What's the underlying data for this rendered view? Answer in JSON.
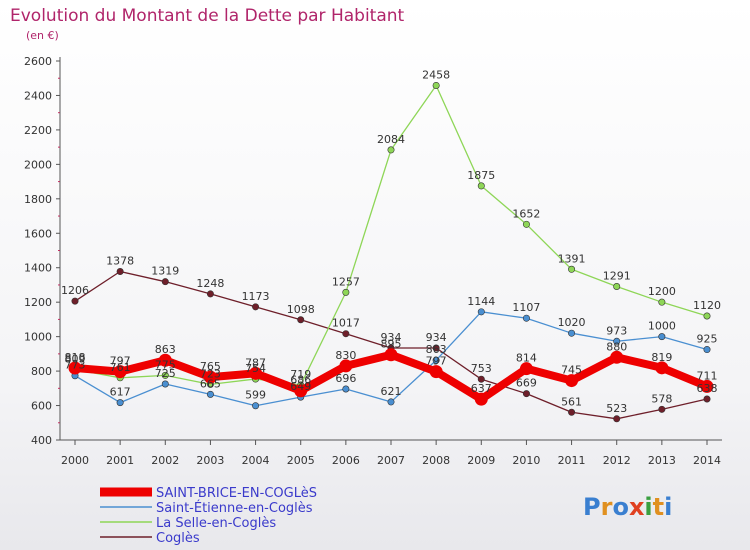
{
  "title": "Evolution du Montant de la Dette par Habitant",
  "subtitle": "(en €)",
  "logo_text": "Proxiti",
  "chart_data": {
    "type": "line",
    "title": "Evolution du Montant de la Dette par Habitant",
    "subtitle": "(en €)",
    "xlabel": "",
    "ylabel": "",
    "ylim": [
      400,
      2600
    ],
    "yticks": [
      400,
      600,
      800,
      1000,
      1200,
      1400,
      1600,
      1800,
      2000,
      2200,
      2400,
      2600
    ],
    "grid": false,
    "legend_position": "bottom-left",
    "categories": [
      "2000",
      "2001",
      "2002",
      "2003",
      "2004",
      "2005",
      "2006",
      "2007",
      "2008",
      "2009",
      "2010",
      "2011",
      "2012",
      "2013",
      "2014"
    ],
    "series": [
      {
        "name": "Coglès",
        "color": "#6e1f2a",
        "values": [
          1206,
          1378,
          1319,
          1248,
          1173,
          1098,
          1017,
          934,
          934,
          753,
          669,
          561,
          523,
          578,
          638
        ]
      },
      {
        "name": "Saint-Étienne-en-Coglès",
        "color": "#4a8fd1",
        "values": [
          773,
          617,
          725,
          665,
          599,
          649,
          696,
          621,
          863,
          1144,
          1107,
          1020,
          973,
          1000,
          925
        ]
      },
      {
        "name": "La Selle-en-Coglès",
        "color": "#8ed657",
        "values": [
          809,
          761,
          775,
          723,
          754,
          719,
          1257,
          2084,
          2458,
          1875,
          1652,
          1391,
          1291,
          1200,
          1120
        ]
      },
      {
        "name": "SAINT-BRICE-EN-COGLèS",
        "color": "#ee0000",
        "values": [
          818,
          797,
          863,
          765,
          787,
          686,
          830,
          895,
          797,
          637,
          814,
          745,
          880,
          819,
          711
        ]
      }
    ]
  }
}
